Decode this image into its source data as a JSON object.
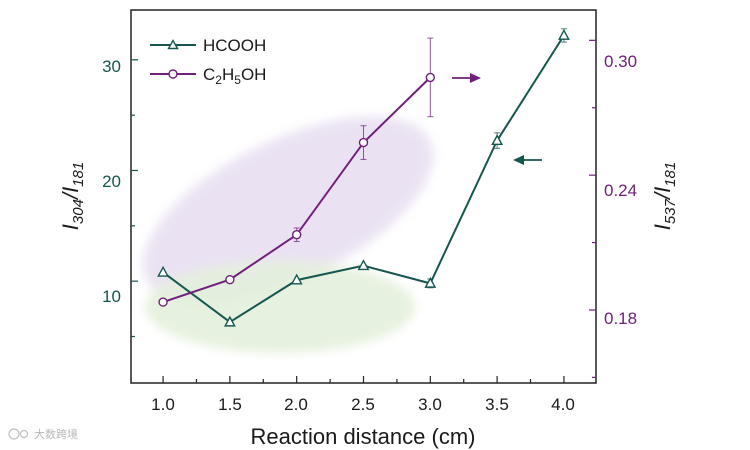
{
  "chart_data": {
    "type": "line",
    "title": "",
    "xlabel": "Reaction distance (cm)",
    "ylabel_left": {
      "main": "I",
      "sub1": "304",
      "sep": "/I",
      "sub2": "181"
    },
    "ylabel_right": {
      "main": "I",
      "sub1": "537",
      "sep": "/I",
      "sub2": "181"
    },
    "xlim": [
      0.76,
      4.24
    ],
    "ylim_left": [
      0.8,
      34.5
    ],
    "ylim_right": [
      0.1475,
      0.3135
    ],
    "x_ticks": [
      "1.0",
      "1.5",
      "2.0",
      "2.5",
      "3.0",
      "3.5",
      "4.0"
    ],
    "y_left_ticks": [
      "10",
      "20",
      "30"
    ],
    "y_right_ticks": [
      "0.18",
      "0.24",
      "0.30"
    ],
    "legend_position": "top-left",
    "series": [
      {
        "name": "HCOOH",
        "axis": "left",
        "marker": "triangle",
        "color": "#16564f",
        "x": [
          1.0,
          1.5,
          2.0,
          2.5,
          3.0,
          3.5,
          4.0
        ],
        "y": [
          10.8,
          6.3,
          10.1,
          11.4,
          9.8,
          22.7,
          32.2
        ],
        "err": [
          0,
          0,
          0,
          0,
          0.4,
          0.7,
          0.6
        ]
      },
      {
        "name": "C2H5OH",
        "legend_label": {
          "a": "C",
          "s1": "2",
          "b": "H",
          "s2": "5",
          "c": "OH"
        },
        "axis": "right",
        "marker": "circle",
        "color": "#70207a",
        "x": [
          1.0,
          1.5,
          2.0,
          2.5,
          3.0
        ],
        "y": [
          0.1835,
          0.1935,
          0.2135,
          0.2545,
          0.2835
        ],
        "err": [
          0,
          0,
          0.003,
          0.0075,
          0.0175
        ]
      }
    ],
    "annotations": [
      "arrow pointing right near C2H5OH series (right axis)",
      "arrow pointing left near HCOOH series (left axis)"
    ]
  },
  "watermark": "大数跨境",
  "colors": {
    "left_axis": "#16564f",
    "right_axis": "#70207a",
    "ellipse_purple": "#e7def0",
    "ellipse_green": "#e4f0dc"
  }
}
